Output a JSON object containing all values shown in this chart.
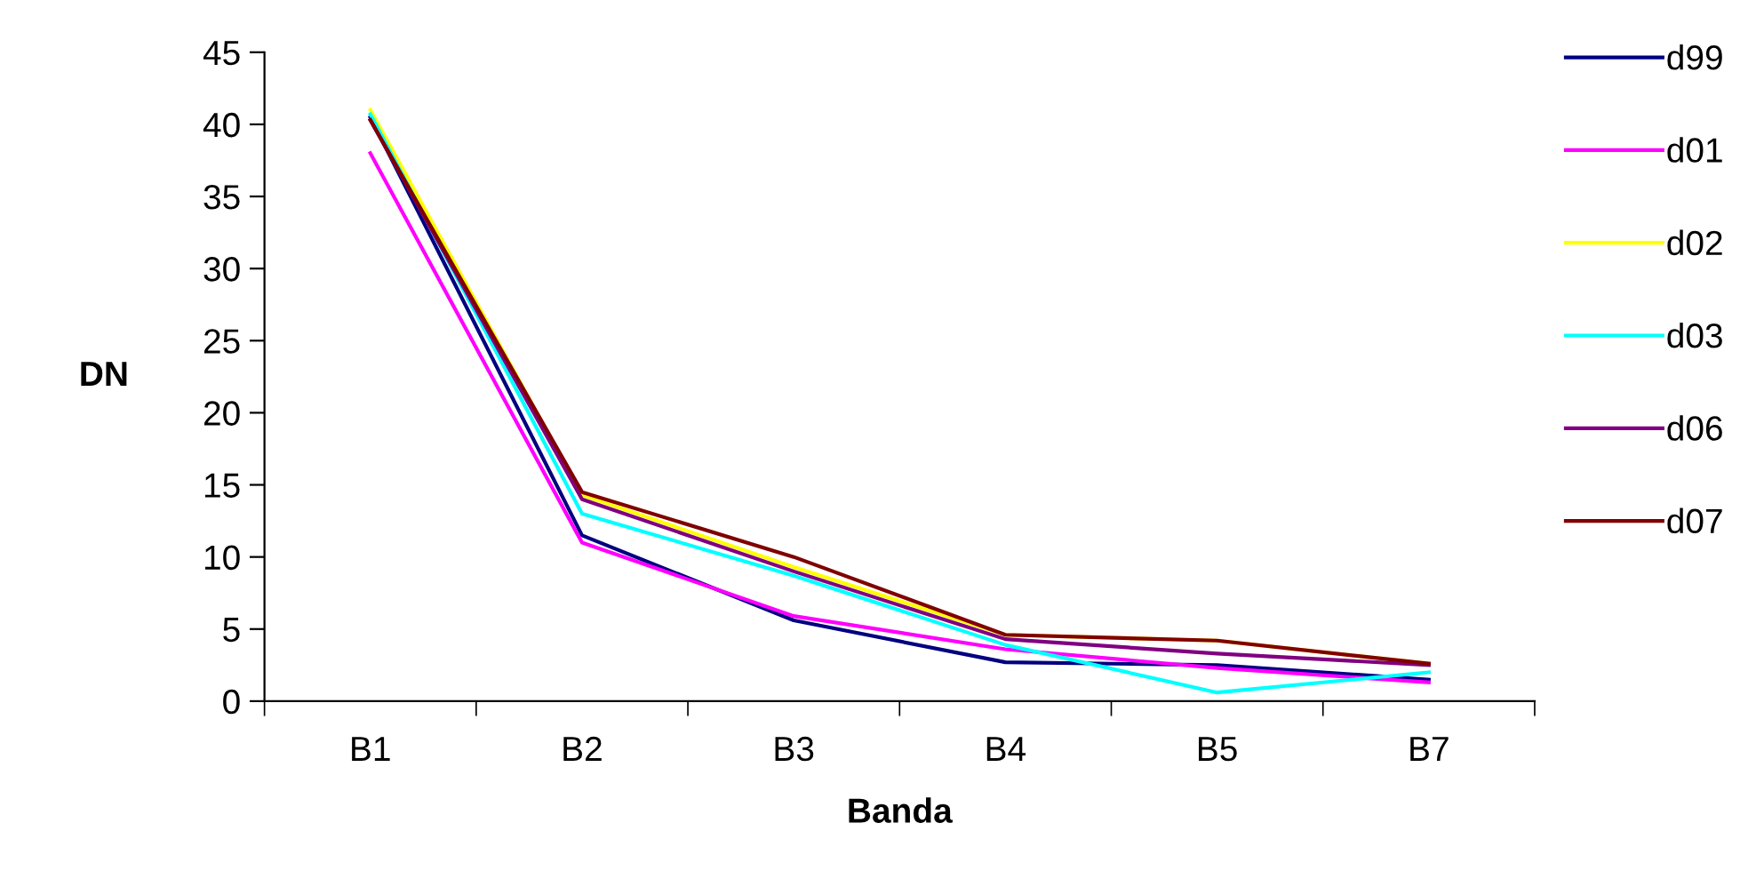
{
  "chart_data": {
    "type": "line",
    "xlabel": "Banda",
    "ylabel": "DN",
    "categories": [
      "B1",
      "B2",
      "B3",
      "B4",
      "B5",
      "B7"
    ],
    "ylim": [
      0,
      45
    ],
    "yticks": [
      0,
      5,
      10,
      15,
      20,
      25,
      30,
      35,
      40,
      45
    ],
    "grid": false,
    "legend": "right",
    "marker": "none",
    "line_style": "solid",
    "series": [
      {
        "name": "d99",
        "color": "#000080",
        "values": [
          40.5,
          11.5,
          5.6,
          2.7,
          2.5,
          1.5
        ]
      },
      {
        "name": "d01",
        "color": "#ff00ff",
        "values": [
          38,
          11,
          5.9,
          3.6,
          2.3,
          1.3
        ]
      },
      {
        "name": "d02",
        "color": "#ffff00",
        "values": [
          41,
          14.3,
          9.3,
          4.6,
          4.2,
          2.6
        ]
      },
      {
        "name": "d03",
        "color": "#00ffff",
        "values": [
          40.7,
          13,
          8.7,
          3.9,
          0.6,
          2.0
        ]
      },
      {
        "name": "d06",
        "color": "#800080",
        "values": [
          40.3,
          14,
          9,
          4.3,
          3.3,
          2.5
        ]
      },
      {
        "name": "d07",
        "color": "#800000",
        "values": [
          40.3,
          14.5,
          10,
          4.6,
          4.2,
          2.6
        ]
      }
    ]
  }
}
